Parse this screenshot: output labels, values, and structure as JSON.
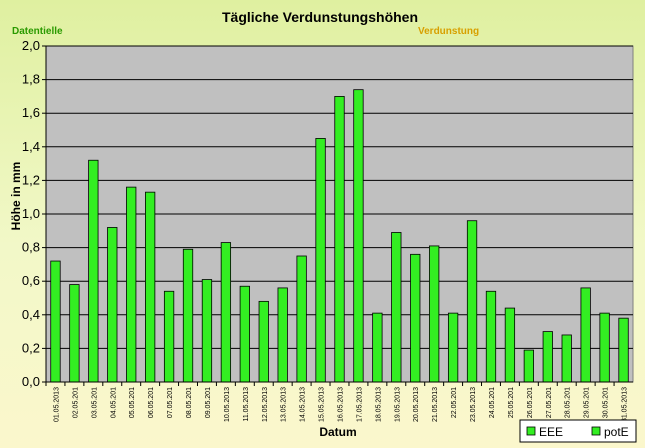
{
  "labels": {
    "left_fragment": "Datentielle",
    "right_fragment": "Verdunstung"
  },
  "colors": {
    "bar_fill": "#33ee22",
    "bar_stroke": "#000000",
    "plot_background": "#c0c0c0",
    "label_fragment": "#e8e800"
  },
  "chart_data": {
    "type": "bar",
    "title": "Tägliche Verdunstungshöhen",
    "xlabel": "Datum",
    "ylabel": "Höhe in mm",
    "ylim": [
      0,
      2.0
    ],
    "yticks": [
      "0,0",
      "0,2",
      "0,4",
      "0,6",
      "0,8",
      "1,0",
      "1,2",
      "1,4",
      "1,6",
      "1,8",
      "2,0"
    ],
    "grid": true,
    "legend_position": "bottom-right",
    "legend": [
      "EEE",
      "potE"
    ],
    "categories": [
      "01.05.2013",
      "02.05.201",
      "03.05.201",
      "04.05.201",
      "05.05.201",
      "06.05.201",
      "07.05.201",
      "08.05.201",
      "09.05.201",
      "10.05.2013",
      "11.05.2013",
      "12.05.2013",
      "13.05.2013",
      "14.05.2013",
      "15.05.2013",
      "16.05.2013",
      "17.05.2013",
      "18.05.2013",
      "19.05.2013",
      "20.05.2013",
      "21.05.2013",
      "22.05.201",
      "23.05.2013",
      "24.05.201",
      "25.05.201",
      "26.05.201",
      "27.05.201",
      "28.05.201",
      "29.05.201",
      "30.05.201",
      "31.05.2013"
    ],
    "series": [
      {
        "name": "potE",
        "values": [
          0.72,
          0.58,
          1.32,
          0.92,
          1.16,
          1.13,
          0.54,
          0.79,
          0.61,
          0.83,
          0.57,
          0.48,
          0.56,
          0.75,
          1.45,
          1.7,
          1.74,
          0.41,
          0.89,
          0.76,
          0.81,
          0.41,
          0.96,
          0.54,
          0.44,
          0.19,
          0.3,
          0.28,
          0.56,
          0.41,
          0.38
        ]
      }
    ]
  }
}
